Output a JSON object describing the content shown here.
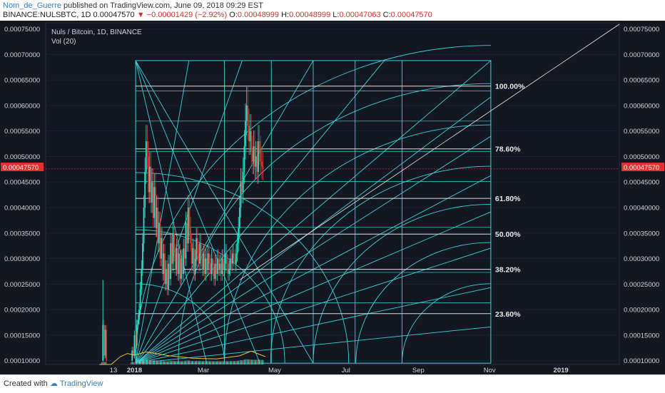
{
  "header": {
    "username": "Nom_de_Guerre",
    "published_text": "published on TradingView.com, June 09, 2018 09:29 EST",
    "symbol_line": "BINANCE:NULSBTC, 1D",
    "last_price": "0.00047570",
    "change": "−0.00001429 (−2.92%)",
    "open_label": "O:",
    "open": "0.00048999",
    "high_label": "H:",
    "high": "0.00048999",
    "low_label": "L:",
    "low": "0.00047063",
    "close_label": "C:",
    "close": "0.00047570"
  },
  "chart_title": "Nuls / Bitcoin, 1D, BINANCE",
  "volume_label": "Vol (20)",
  "price_badge": "0.00047570",
  "footer": {
    "created_with": "Created with",
    "brand": "TradingView"
  },
  "colors": {
    "background": "#131722",
    "up": "#26e0c8",
    "down": "#e0312e",
    "gann": "#3ad3d8",
    "fib": "#dddddd",
    "axis_text": "#cfd3dc",
    "badge": "#e0312e",
    "volume_ma": "#e6c23a"
  },
  "chart_data": {
    "type": "candlestick",
    "title": "Nuls / Bitcoin, 1D, BINANCE",
    "y_ticks": [
      "0.00075000",
      "0.00070000",
      "0.00065000",
      "0.00060000",
      "0.00055000",
      "0.00050000",
      "0.00045000",
      "0.00040000",
      "0.00035000",
      "0.00030000",
      "0.00025000",
      "0.00020000",
      "0.00015000",
      "0.00010000"
    ],
    "y_tick_values": [
      0.00075,
      0.0007,
      0.00065,
      0.0006,
      0.00055,
      0.0005,
      0.00045,
      0.0004,
      0.00035,
      0.0003,
      0.00025,
      0.0002,
      0.00015,
      0.0001
    ],
    "ylim": [
      9.25e-05,
      0.000762
    ],
    "x_ticks": [
      "13",
      "2018",
      "Mar",
      "May",
      "Jul",
      "Sep",
      "Nov",
      "2019"
    ],
    "x_tick_days": [
      -18,
      0,
      59,
      120,
      181,
      243,
      304,
      365
    ],
    "xlim": [
      -76,
      415
    ],
    "fib_levels": [
      {
        "label": "100.00%",
        "price": 0.000638
      },
      {
        "label": "78.60%",
        "price": 0.000515
      },
      {
        "label": "61.80%",
        "price": 0.000418
      },
      {
        "label": "50.00%",
        "price": 0.000348
      },
      {
        "label": "38.20%",
        "price": 0.000279
      },
      {
        "label": "23.60%",
        "price": 0.000192
      }
    ],
    "gann_box": {
      "day_start": 1,
      "day_end": 305,
      "price_low": 9.5e-05,
      "price_high": 0.000688
    },
    "last_price": 0.0004757,
    "price_path": [
      [
        -28,
        0.0001
      ],
      [
        -27,
        0.00017
      ],
      [
        -26,
        0.00011
      ],
      [
        -25,
        0.00016
      ],
      [
        -24,
        0.0001
      ],
      [
        -3,
        0.0001
      ],
      [
        -2,
        0.00012
      ],
      [
        -1,
        0.00011
      ],
      [
        0,
        0.00015
      ],
      [
        1,
        0.00013
      ],
      [
        2,
        0.00017
      ],
      [
        3,
        0.00018
      ],
      [
        4,
        0.0002
      ],
      [
        5,
        0.00024
      ],
      [
        6,
        0.00028
      ],
      [
        7,
        0.00033
      ],
      [
        8,
        0.0004
      ],
      [
        9,
        0.00047
      ],
      [
        10,
        0.00053
      ],
      [
        11,
        0.0005
      ],
      [
        12,
        0.00043
      ],
      [
        13,
        0.00048
      ],
      [
        14,
        0.00041
      ],
      [
        15,
        0.00045
      ],
      [
        16,
        0.00038
      ],
      [
        17,
        0.00044
      ],
      [
        18,
        0.00036
      ],
      [
        19,
        0.0004
      ],
      [
        20,
        0.00033
      ],
      [
        21,
        0.00037
      ],
      [
        22,
        0.0003
      ],
      [
        23,
        0.00034
      ],
      [
        24,
        0.00027
      ],
      [
        25,
        0.00031
      ],
      [
        26,
        0.00025
      ],
      [
        27,
        0.00028
      ],
      [
        28,
        0.00024
      ],
      [
        29,
        0.00029
      ],
      [
        30,
        0.00026
      ],
      [
        31,
        0.00033
      ],
      [
        32,
        0.00029
      ],
      [
        33,
        0.00035
      ],
      [
        34,
        0.00031
      ],
      [
        35,
        0.00028
      ],
      [
        36,
        0.00032
      ],
      [
        37,
        0.00027
      ],
      [
        38,
        0.00031
      ],
      [
        39,
        0.00026
      ],
      [
        40,
        0.0003
      ],
      [
        41,
        0.00027
      ],
      [
        42,
        0.00032
      ],
      [
        43,
        0.0003
      ],
      [
        44,
        0.00037
      ],
      [
        45,
        0.00033
      ],
      [
        46,
        0.0004
      ],
      [
        47,
        0.00036
      ],
      [
        48,
        0.00033
      ],
      [
        49,
        0.00029
      ],
      [
        50,
        0.00032
      ],
      [
        51,
        0.00027
      ],
      [
        52,
        0.0003
      ],
      [
        53,
        0.00034
      ],
      [
        54,
        0.00031
      ],
      [
        55,
        0.00029
      ],
      [
        56,
        0.00033
      ],
      [
        57,
        0.0003
      ],
      [
        58,
        0.00028
      ],
      [
        59,
        0.00031
      ],
      [
        60,
        0.00027
      ],
      [
        61,
        0.0003
      ],
      [
        62,
        0.00028
      ],
      [
        63,
        0.00031
      ],
      [
        64,
        0.00029
      ],
      [
        65,
        0.00027
      ],
      [
        66,
        0.0003
      ],
      [
        67,
        0.00028
      ],
      [
        68,
        0.00026
      ],
      [
        69,
        0.00029
      ],
      [
        70,
        0.00027
      ],
      [
        71,
        0.0003
      ],
      [
        72,
        0.00028
      ],
      [
        73,
        0.00029
      ],
      [
        74,
        0.00027
      ],
      [
        75,
        0.0003
      ],
      [
        76,
        0.00028
      ],
      [
        77,
        0.00029
      ],
      [
        78,
        0.00031
      ],
      [
        79,
        0.00029
      ],
      [
        80,
        0.00027
      ],
      [
        81,
        0.00028
      ],
      [
        82,
        0.0003
      ],
      [
        83,
        0.00029
      ],
      [
        84,
        0.00031
      ],
      [
        85,
        0.0003
      ],
      [
        86,
        0.00029
      ],
      [
        87,
        0.00031
      ],
      [
        88,
        0.00033
      ],
      [
        89,
        0.00036
      ],
      [
        90,
        0.0004
      ],
      [
        91,
        0.00045
      ],
      [
        92,
        0.00043
      ],
      [
        93,
        0.00047
      ],
      [
        94,
        0.00052
      ],
      [
        95,
        0.00057
      ],
      [
        96,
        0.0006
      ],
      [
        97,
        0.00056
      ],
      [
        98,
        0.00053
      ],
      [
        99,
        0.00055
      ],
      [
        100,
        0.00051
      ],
      [
        101,
        0.00049
      ],
      [
        102,
        0.00052
      ],
      [
        103,
        0.00048
      ],
      [
        104,
        0.0005
      ],
      [
        105,
        0.00047
      ],
      [
        106,
        0.00053
      ],
      [
        107,
        0.00051
      ],
      [
        108,
        0.00049
      ],
      [
        109,
        0.00048
      ],
      [
        110,
        0.000476
      ]
    ],
    "volume_ma": [
      [
        -30,
        0.0
      ],
      [
        -20,
        0.0
      ],
      [
        -12,
        0.1
      ],
      [
        -6,
        0.14
      ],
      [
        0,
        0.12
      ],
      [
        10,
        0.16
      ],
      [
        30,
        0.11
      ],
      [
        50,
        0.08
      ],
      [
        70,
        0.07
      ],
      [
        90,
        0.11
      ],
      [
        100,
        0.17
      ],
      [
        105,
        0.14
      ],
      [
        112,
        0.1
      ]
    ]
  }
}
